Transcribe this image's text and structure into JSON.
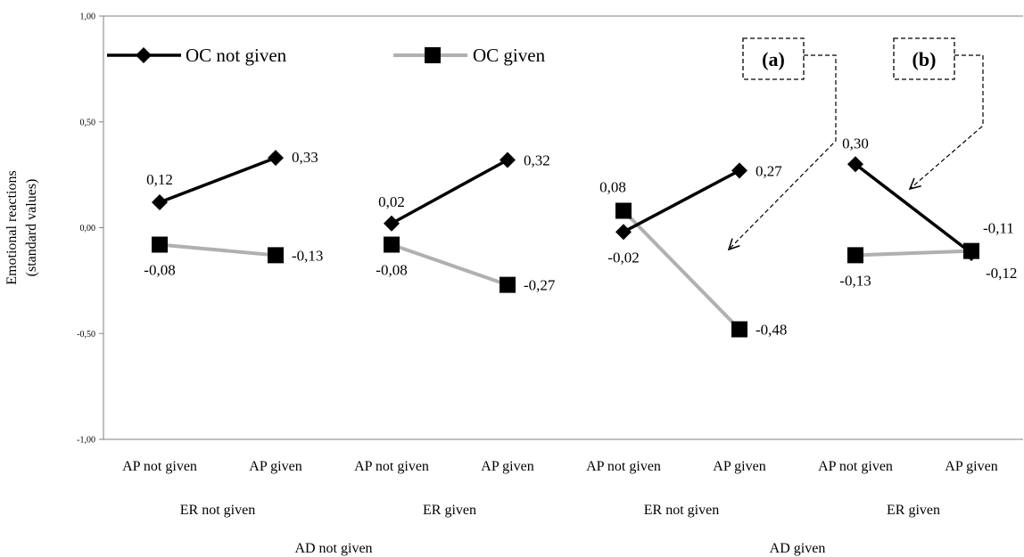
{
  "chart_data": {
    "type": "line",
    "ylabel_lines": [
      "Emotional reactions",
      "(standard values)"
    ],
    "ylim": [
      -1,
      1
    ],
    "yticks": [
      "1,00",
      "0,50",
      "0,00",
      "-0,50",
      "-1,00"
    ],
    "ytick_values": [
      1,
      0.5,
      0,
      -0.5,
      -1
    ],
    "categories": [
      "AP not given",
      "AP given",
      "AP not given",
      "AP given",
      "AP not given",
      "AP given",
      "AP not given",
      "AP given"
    ],
    "groups_level2": [
      "ER not given",
      "ER given",
      "ER not given",
      "ER given"
    ],
    "groups_level1": [
      "AD not given",
      "AD given"
    ],
    "series": [
      {
        "name": "OC not given",
        "color": "#000000",
        "marker": "diamond",
        "values": [
          0.12,
          0.33,
          0.02,
          0.32,
          -0.02,
          0.27,
          0.3,
          -0.12
        ],
        "labels": [
          "0,12",
          "0,33",
          "0,02",
          "0,32",
          "-0,02",
          "0,27",
          "0,30",
          "-0,12"
        ]
      },
      {
        "name": "OC given",
        "color": "#b0b0b0",
        "marker": "square",
        "values": [
          -0.08,
          -0.13,
          -0.08,
          -0.27,
          0.08,
          -0.48,
          -0.13,
          -0.11
        ],
        "labels": [
          "-0,08",
          "-0,13",
          "-0,08",
          "-0,27",
          "0,08",
          "-0,48",
          "-0,13",
          "-0,11"
        ]
      }
    ],
    "annotations": [
      {
        "label": "(a)"
      },
      {
        "label": "(b)"
      }
    ],
    "legend_position": "top-left",
    "grid": false
  }
}
